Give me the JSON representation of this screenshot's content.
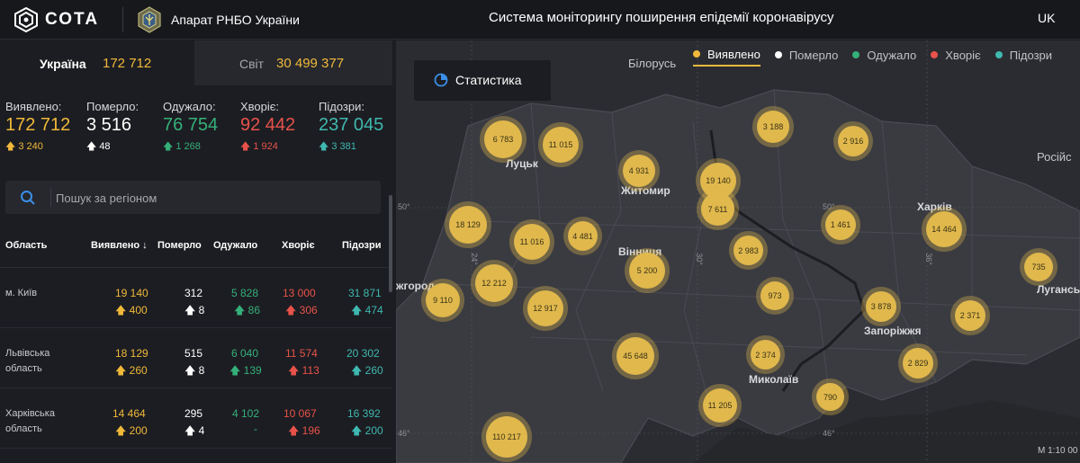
{
  "header": {
    "logo_text": "СОТА",
    "org_name": "Апарат РНБО України",
    "system_title": "Система моніторингу поширення епідемії коронавірусу",
    "lang": "UK"
  },
  "scope_tabs": {
    "ukraine": {
      "label": "Україна",
      "value": "172 712"
    },
    "world": {
      "label": "Світ",
      "value": "30 499 377"
    }
  },
  "stats": [
    {
      "label": "Виявлено:",
      "value": "172 712",
      "delta": "3 240",
      "color": "#f0b93a"
    },
    {
      "label": "Померло:",
      "value": "3 516",
      "delta": "48",
      "color": "#ffffff"
    },
    {
      "label": "Одужало:",
      "value": "76 754",
      "delta": "1 268",
      "color": "#35b07a"
    },
    {
      "label": "Хворіє:",
      "value": "92 442",
      "delta": "1 924",
      "color": "#e8524a"
    },
    {
      "label": "Підозри:",
      "value": "237 045",
      "delta": "3 381",
      "color": "#3fb8b0"
    }
  ],
  "search": {
    "placeholder": "Пошук за регіоном"
  },
  "table": {
    "headers": [
      "Область",
      "Виявлено",
      "Померло",
      "Одужало",
      "Хворіє",
      "Підозри"
    ],
    "rows": [
      {
        "region": "м. Київ",
        "detected": "19 140",
        "detected_delta": "400",
        "died": "312",
        "died_delta": "8",
        "recovered": "5 828",
        "recovered_delta": "86",
        "sick": "13 000",
        "sick_delta": "306",
        "suspected": "31 871",
        "suspected_delta": "474"
      },
      {
        "region": "Львівська область",
        "detected": "18 129",
        "detected_delta": "260",
        "died": "515",
        "died_delta": "8",
        "recovered": "6 040",
        "recovered_delta": "139",
        "sick": "11 574",
        "sick_delta": "113",
        "suspected": "20 302",
        "suspected_delta": "260"
      },
      {
        "region": "Харківська область",
        "detected": "14 464",
        "detected_delta": "200",
        "died": "295",
        "died_delta": "4",
        "recovered": "4 102",
        "recovered_delta": "-",
        "sick": "10 067",
        "sick_delta": "196",
        "suspected": "16 392",
        "suspected_delta": "200"
      }
    ]
  },
  "legend": [
    {
      "label": "Виявлено",
      "color": "#f0b93a",
      "active": true
    },
    {
      "label": "Померло",
      "color": "#ffffff",
      "active": false
    },
    {
      "label": "Одужало",
      "color": "#35b07a",
      "active": false
    },
    {
      "label": "Хворіє",
      "color": "#e8524a",
      "active": false
    },
    {
      "label": "Підозри",
      "color": "#3fb8b0",
      "active": false
    }
  ],
  "map": {
    "stats_button": "Статистика",
    "countries": [
      "Білорусь",
      "Російс"
    ],
    "cities": [
      "Луцьк",
      "Житомир",
      "Вінниця",
      "Харків",
      "Луганськ",
      "Запоріжжя",
      "Миколаїв",
      "жгород"
    ],
    "grid_labels": [
      "50°",
      "50°",
      "24°",
      "30°",
      "36°",
      "46°",
      "46°"
    ],
    "bubbles": [
      "6 783",
      "11 015",
      "4 931",
      "19 140",
      "3 188",
      "2 916",
      "7 611",
      "18 129",
      "11 016",
      "4 481",
      "1 461",
      "14 464",
      "2 983",
      "5 200",
      "735",
      "12 212",
      "9 110",
      "12 917",
      "973",
      "3 878",
      "2 371",
      "45 648",
      "2 374",
      "2 829",
      "790",
      "11 205",
      "110 217"
    ],
    "scale": "M 1:10 00"
  }
}
